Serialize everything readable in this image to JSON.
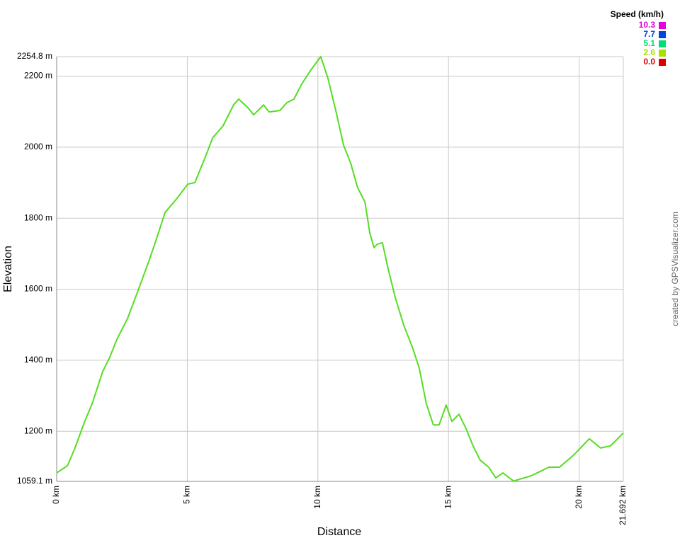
{
  "chart_data": {
    "type": "line",
    "xlabel": "Distance",
    "ylabel": "Elevation",
    "credit": "created by GPSVisualizer.com",
    "x": [
      0,
      0.41,
      0.68,
      1.08,
      1.36,
      1.76,
      2.03,
      2.3,
      2.71,
      3.12,
      3.52,
      3.8,
      4.15,
      4.61,
      5.02,
      5.29,
      5.69,
      5.97,
      6.37,
      6.78,
      6.97,
      7.32,
      7.54,
      7.92,
      8.13,
      8.54,
      8.81,
      9.08,
      9.36,
      9.71,
      10.11,
      10.38,
      10.71,
      10.98,
      11.25,
      11.52,
      11.8,
      11.99,
      12.15,
      12.28,
      12.47,
      12.69,
      12.96,
      13.29,
      13.61,
      13.88,
      14.15,
      14.42,
      14.64,
      14.91,
      15.13,
      15.4,
      15.67,
      15.94,
      16.21,
      16.54,
      16.81,
      17.08,
      17.49,
      18.17,
      18.84,
      19.25,
      19.79,
      20.39,
      20.82,
      21.2,
      21.69
    ],
    "series": [
      {
        "name": "Elevation",
        "color": "#55dd22",
        "values": [
          1083,
          1103,
          1149,
          1229,
          1278,
          1368,
          1408,
          1458,
          1517,
          1597,
          1677,
          1737,
          1816,
          1856,
          1896,
          1900,
          1972,
          2026,
          2060,
          2120,
          2135,
          2111,
          2091,
          2119,
          2099,
          2103,
          2125,
          2135,
          2175,
          2215,
          2254.8,
          2195,
          2095,
          2006,
          1956,
          1886,
          1846,
          1757,
          1717,
          1727,
          1731,
          1657,
          1577,
          1498,
          1438,
          1378,
          1278,
          1218,
          1218,
          1274,
          1228,
          1248,
          1208,
          1159,
          1119,
          1099,
          1069,
          1083,
          1060,
          1075,
          1099,
          1099,
          1133,
          1179,
          1153,
          1159,
          1195
        ]
      }
    ],
    "xlim": [
      0,
      21.692
    ],
    "xticks": [
      {
        "value": 0,
        "label": "0 km"
      },
      {
        "value": 5,
        "label": "5 km"
      },
      {
        "value": 10,
        "label": "10 km"
      },
      {
        "value": 15,
        "label": "15 km"
      },
      {
        "value": 20,
        "label": "20 km"
      },
      {
        "value": 21.692,
        "label": "21.692 km"
      }
    ],
    "ylim": [
      1059.1,
      2254.8
    ],
    "yticks": [
      {
        "value": 1059.1,
        "label": "1059.1 m"
      },
      {
        "value": 1200,
        "label": "1200 m"
      },
      {
        "value": 1400,
        "label": "1400 m"
      },
      {
        "value": 1600,
        "label": "1600 m"
      },
      {
        "value": 1800,
        "label": "1800 m"
      },
      {
        "value": 2000,
        "label": "2000 m"
      },
      {
        "value": 2200,
        "label": "2200 m"
      },
      {
        "value": 2254.8,
        "label": "2254.8 m"
      }
    ],
    "grid": true,
    "speed_scale": {
      "title": "Speed (km/h)",
      "ticks": [
        10.3,
        7.7,
        5.1,
        2.6,
        {
          "value": 0,
          "label": "0.0"
        }
      ],
      "colors": [
        "#e000e0",
        "#0044dd",
        "#00dd77",
        "#aadd00",
        "#dd0000"
      ]
    }
  }
}
